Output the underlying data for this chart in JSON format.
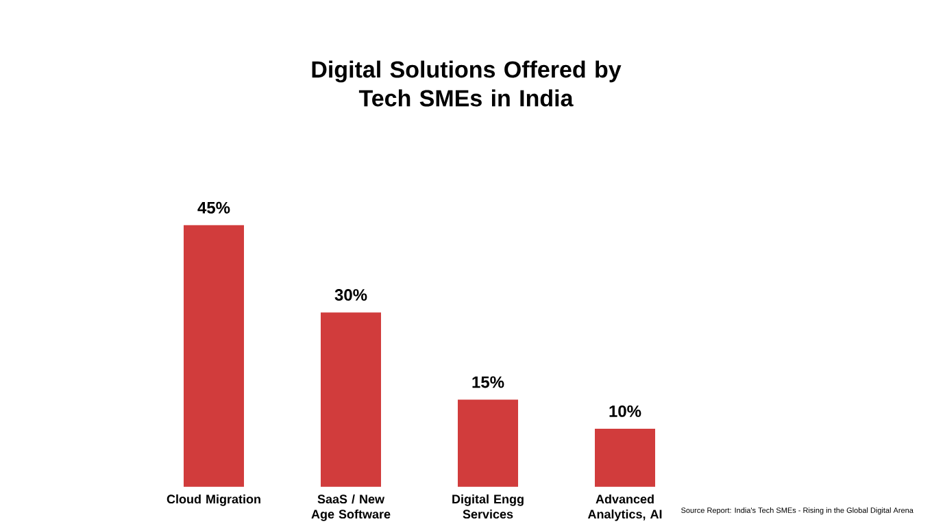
{
  "chart_data": {
    "type": "bar",
    "title": "Digital Solutions Offered by\nTech SMEs in India",
    "categories": [
      "Cloud Migration",
      "SaaS / New Age Software",
      "Digital Engg Services",
      "Advanced Analytics, AI"
    ],
    "values": [
      45,
      30,
      15,
      10
    ],
    "value_labels": [
      "45%",
      "30%",
      "15%",
      "10%"
    ],
    "color": "#d13c3c",
    "annotations": [
      "Source Report: India's Tech SMEs - Rising in the Global Digital Arena"
    ]
  }
}
